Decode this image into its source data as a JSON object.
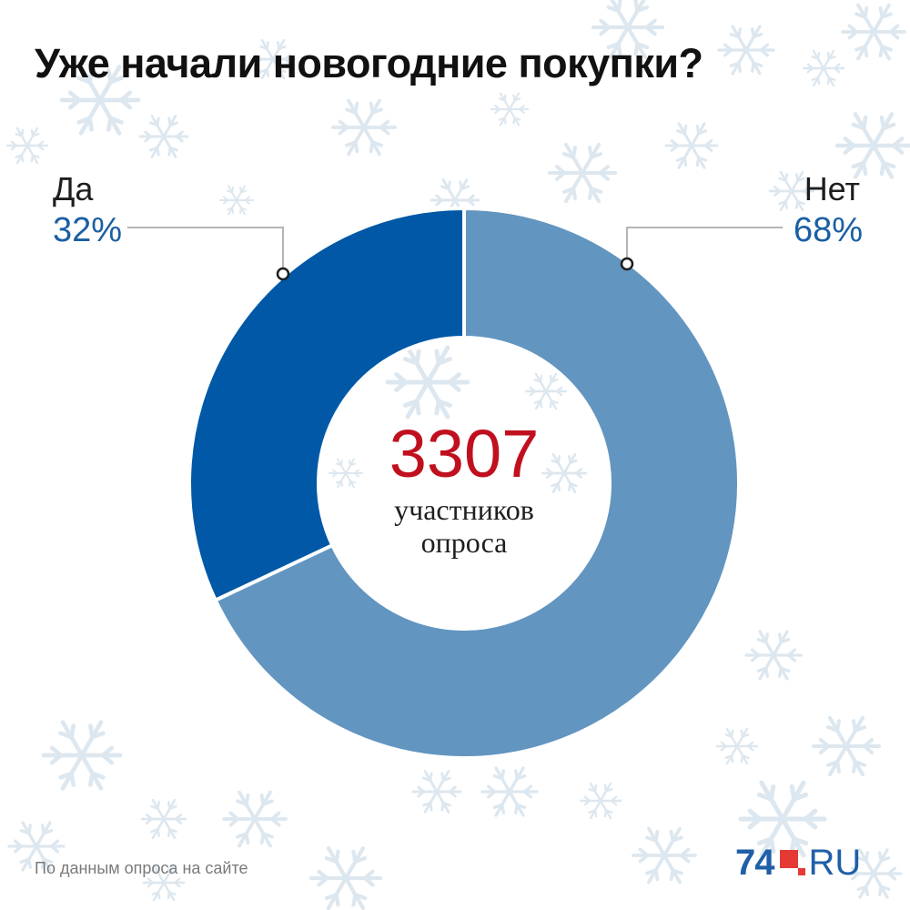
{
  "title": "Уже начали новогодние покупки?",
  "chart_data": {
    "type": "pie",
    "variant": "donut",
    "slices": [
      {
        "label": "Да",
        "value": 32,
        "display": "32%"
      },
      {
        "label": "Нет",
        "value": 68,
        "display": "68%"
      }
    ],
    "center": {
      "total": "3307",
      "caption_line1": "участников",
      "caption_line2": "опроса"
    }
  },
  "colors": {
    "yes_slice": "#0058a6",
    "no_slice": "#6295c0",
    "percent_text": "#1a5fa3",
    "total_text": "#c0101f",
    "snowflake": "#dde7ef",
    "logo_blue": "#1f5fa8",
    "logo_red": "#e53935"
  },
  "footer": {
    "source": "По данным опроса на сайте"
  },
  "logo": {
    "number": "74",
    "suffix": "RU"
  }
}
